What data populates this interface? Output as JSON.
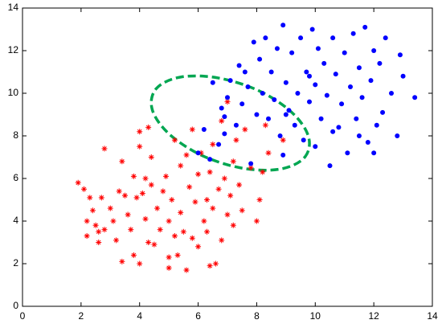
{
  "chart_data": {
    "type": "scatter",
    "xlim": [
      0,
      14
    ],
    "ylim": [
      0,
      14
    ],
    "xticks": [
      0,
      2,
      4,
      6,
      8,
      10,
      12,
      14
    ],
    "yticks": [
      0,
      2,
      4,
      6,
      8,
      10,
      12,
      14
    ],
    "series": [
      {
        "color": "#ff0000",
        "marker": "star",
        "x": [
          1.9,
          2.1,
          2.2,
          2.2,
          2.3,
          2.4,
          2.5,
          2.6,
          2.6,
          2.7,
          2.8,
          2.8,
          3.0,
          3.1,
          3.2,
          3.3,
          3.4,
          3.4,
          3.5,
          3.6,
          3.7,
          3.8,
          3.8,
          3.9,
          4.0,
          4.0,
          4.0,
          4.1,
          4.2,
          4.2,
          4.3,
          4.3,
          4.4,
          4.4,
          4.5,
          4.6,
          4.7,
          4.8,
          4.9,
          5.0,
          5.0,
          5.0,
          5.1,
          5.2,
          5.2,
          5.3,
          5.4,
          5.4,
          5.5,
          5.6,
          5.6,
          5.7,
          5.8,
          5.8,
          5.9,
          6.0,
          6.0,
          6.1,
          6.2,
          6.3,
          6.3,
          6.4,
          6.4,
          6.5,
          6.5,
          6.6,
          6.7,
          6.8,
          6.8,
          6.9,
          7.0,
          7.0,
          7.1,
          7.2,
          7.2,
          7.3,
          7.4,
          7.5,
          7.6,
          7.8,
          8.0,
          8.1,
          8.2,
          8.3,
          8.4,
          8.9
        ],
        "values": [
          5.8,
          5.5,
          4.0,
          3.3,
          5.1,
          4.5,
          3.8,
          3.0,
          3.5,
          5.1,
          3.6,
          7.4,
          4.6,
          4.0,
          3.1,
          5.4,
          2.1,
          6.8,
          5.2,
          4.3,
          3.6,
          2.4,
          6.1,
          5.1,
          7.5,
          2.0,
          8.2,
          5.3,
          4.1,
          6.0,
          3.0,
          8.4,
          5.7,
          7.0,
          2.9,
          4.6,
          3.6,
          5.4,
          6.1,
          2.3,
          4.0,
          1.8,
          5.0,
          3.3,
          7.8,
          2.4,
          4.4,
          6.6,
          3.5,
          1.7,
          7.1,
          5.6,
          3.2,
          8.3,
          4.9,
          6.2,
          2.8,
          7.2,
          4.0,
          5.0,
          3.5,
          6.3,
          1.9,
          7.6,
          4.6,
          2.0,
          5.5,
          3.1,
          8.7,
          6.0,
          4.3,
          9.6,
          5.2,
          6.8,
          3.8,
          7.8,
          5.7,
          4.5,
          8.3,
          6.5,
          4.0,
          5.0,
          6.3,
          8.5,
          7.2,
          7.8
        ]
      },
      {
        "color": "#0000ff",
        "marker": "dot",
        "x": [
          6.0,
          6.2,
          6.4,
          6.5,
          6.7,
          6.8,
          6.9,
          7.0,
          7.1,
          7.3,
          7.4,
          7.5,
          7.6,
          7.7,
          7.8,
          7.9,
          8.0,
          8.1,
          8.2,
          8.4,
          8.5,
          8.6,
          8.7,
          8.8,
          8.9,
          8.9,
          9.0,
          9.1,
          9.2,
          9.3,
          9.4,
          9.5,
          9.6,
          9.7,
          9.8,
          9.9,
          10.0,
          10.0,
          10.1,
          10.2,
          10.3,
          10.4,
          10.5,
          10.6,
          10.7,
          10.8,
          10.9,
          11.0,
          11.1,
          11.2,
          11.3,
          11.4,
          11.5,
          11.6,
          11.7,
          11.8,
          11.9,
          12.0,
          12.1,
          12.2,
          12.3,
          12.4,
          12.6,
          12.8,
          12.9,
          13.0,
          13.4,
          9.0,
          8.3,
          9.8,
          10.6,
          11.5,
          12.0,
          6.9
        ],
        "values": [
          7.2,
          8.3,
          6.9,
          10.5,
          7.6,
          9.3,
          8.9,
          9.8,
          10.6,
          8.5,
          11.3,
          9.5,
          11.0,
          10.3,
          6.7,
          12.4,
          9.0,
          11.6,
          10.0,
          8.8,
          11.0,
          9.7,
          12.1,
          8.0,
          13.2,
          7.1,
          10.5,
          9.2,
          11.9,
          8.5,
          10.0,
          12.6,
          7.8,
          11.0,
          9.6,
          13.0,
          7.5,
          10.4,
          12.1,
          8.8,
          11.4,
          9.9,
          6.6,
          12.6,
          10.9,
          8.4,
          9.5,
          11.9,
          7.2,
          10.3,
          12.8,
          8.8,
          11.2,
          9.8,
          13.1,
          7.7,
          10.6,
          12.0,
          8.5,
          11.4,
          9.1,
          12.6,
          10.0,
          8.0,
          11.8,
          10.8,
          9.8,
          9.0,
          12.6,
          10.8,
          8.2,
          8.0,
          7.2,
          8.1
        ]
      }
    ],
    "ellipse": {
      "color": "#00a651",
      "x": [
        9.63,
        9.77,
        9.2,
        8.07,
        6.68,
        5.4,
        4.57,
        4.43,
        5.0,
        6.13,
        7.52,
        8.8
      ],
      "values": [
        6.98,
        7.96,
        9.1,
        10.12,
        10.72,
        10.76,
        10.22,
        9.24,
        8.1,
        7.08,
        6.48,
        6.44
      ]
    }
  }
}
